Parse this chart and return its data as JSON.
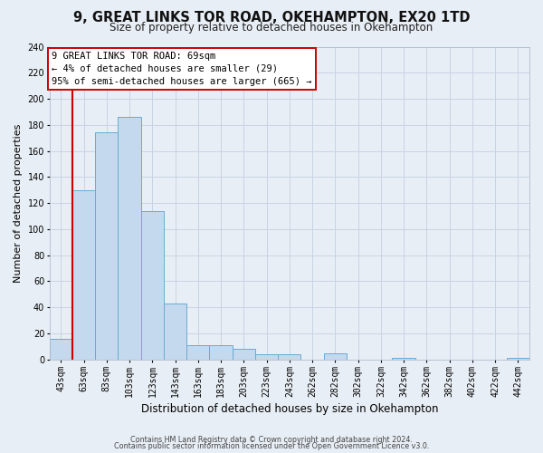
{
  "title": "9, GREAT LINKS TOR ROAD, OKEHAMPTON, EX20 1TD",
  "subtitle": "Size of property relative to detached houses in Okehampton",
  "xlabel": "Distribution of detached houses by size in Okehampton",
  "ylabel": "Number of detached properties",
  "bar_labels": [
    "43sqm",
    "63sqm",
    "83sqm",
    "103sqm",
    "123sqm",
    "143sqm",
    "163sqm",
    "183sqm",
    "203sqm",
    "223sqm",
    "243sqm",
    "262sqm",
    "282sqm",
    "302sqm",
    "322sqm",
    "342sqm",
    "362sqm",
    "382sqm",
    "402sqm",
    "422sqm",
    "442sqm"
  ],
  "bar_values": [
    16,
    130,
    174,
    186,
    114,
    43,
    11,
    11,
    8,
    4,
    4,
    0,
    5,
    0,
    0,
    1,
    0,
    0,
    0,
    0,
    1
  ],
  "bar_color": "#c5d9ee",
  "bar_edge_color": "#6aaad4",
  "vline_color": "#cc0000",
  "vline_x_idx": 1,
  "ylim": [
    0,
    240
  ],
  "yticks": [
    0,
    20,
    40,
    60,
    80,
    100,
    120,
    140,
    160,
    180,
    200,
    220,
    240
  ],
  "annotation_line1": "9 GREAT LINKS TOR ROAD: 69sqm",
  "annotation_line2": "← 4% of detached houses are smaller (29)",
  "annotation_line3": "95% of semi-detached houses are larger (665) →",
  "annotation_box_color": "#ffffff",
  "annotation_box_edge_color": "#cc0000",
  "footer_line1": "Contains HM Land Registry data © Crown copyright and database right 2024.",
  "footer_line2": "Contains public sector information licensed under the Open Government Licence v3.0.",
  "bg_color": "#e8eef5",
  "plot_bg_color": "#e8eef5",
  "grid_color": "#c8d4e4",
  "title_fontsize": 10.5,
  "subtitle_fontsize": 8.5,
  "ylabel_fontsize": 8,
  "xlabel_fontsize": 8.5,
  "tick_fontsize": 7,
  "annotation_fontsize": 7.5,
  "footer_fontsize": 5.8
}
